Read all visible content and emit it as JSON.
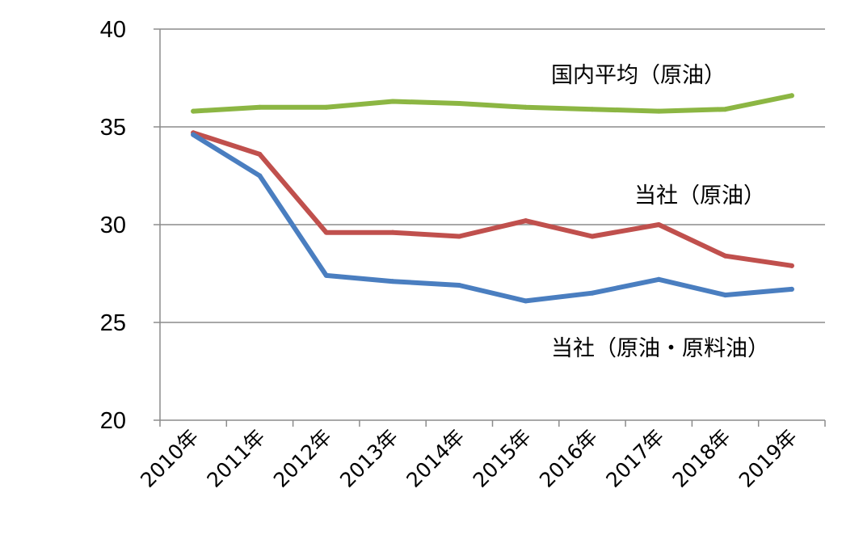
{
  "chart_data": {
    "type": "line",
    "categories": [
      "2010年",
      "2011年",
      "2012年",
      "2013年",
      "2014年",
      "2015年",
      "2016年",
      "2017年",
      "2018年",
      "2019年"
    ],
    "ylim": [
      20,
      40
    ],
    "yticks": [
      20,
      25,
      30,
      35,
      40
    ],
    "grid": true,
    "series": [
      {
        "name": "国内平均（原油）",
        "color": "#8CB643",
        "values": [
          35.8,
          36.0,
          36.0,
          36.3,
          36.2,
          36.0,
          35.9,
          35.8,
          35.9,
          36.6
        ]
      },
      {
        "name": "当社（原油）",
        "color": "#C0504D",
        "values": [
          34.7,
          33.6,
          29.6,
          29.6,
          29.4,
          30.2,
          29.4,
          30.0,
          28.4,
          27.9
        ]
      },
      {
        "name": "当社（原油・原料油）",
        "color": "#4A7EC0",
        "values": [
          34.6,
          32.5,
          27.4,
          27.1,
          26.9,
          26.1,
          26.5,
          27.2,
          26.4,
          26.7
        ]
      }
    ]
  }
}
